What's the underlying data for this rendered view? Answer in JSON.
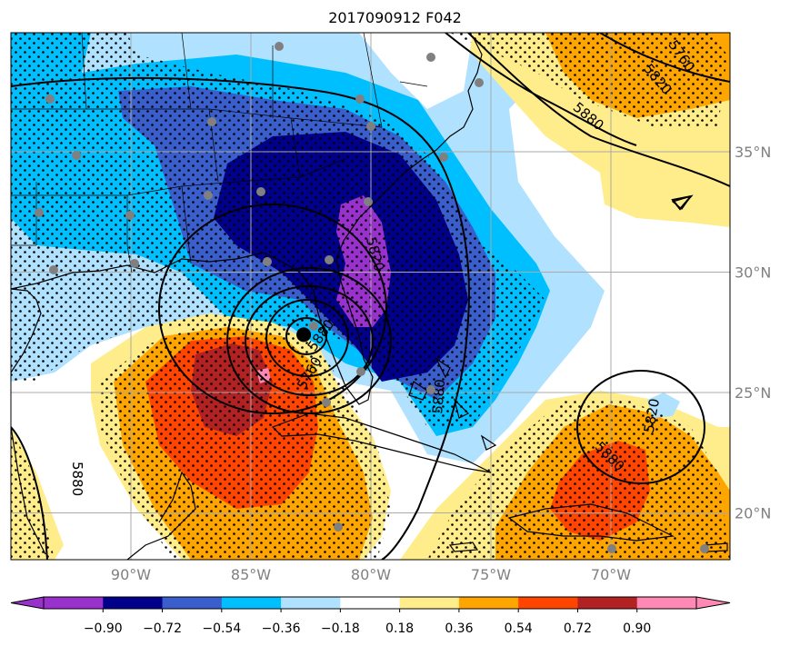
{
  "title": "2017090912 F042",
  "map": {
    "lon_ticks": [
      {
        "lon": -90,
        "label": "90°W"
      },
      {
        "lon": -85,
        "label": "85°W"
      },
      {
        "lon": -80,
        "label": "80°W"
      },
      {
        "lon": -75,
        "label": "75°W"
      },
      {
        "lon": -70,
        "label": "70°W"
      }
    ],
    "lat_ticks": [
      {
        "lat": 35,
        "label": "35°N"
      },
      {
        "lat": 30,
        "label": "30°N"
      },
      {
        "lat": 25,
        "label": "25°N"
      },
      {
        "lat": 20,
        "label": "20°N"
      }
    ],
    "contour_labels": [
      "5760",
      "5820",
      "5880",
      "5760",
      "5820",
      "5880",
      "5880",
      "5820",
      "5880",
      "5880"
    ],
    "storm_center": {
      "lon": -82.8,
      "lat": 27.4
    }
  },
  "colorbar": {
    "colors": [
      "#9932cc",
      "#00008b",
      "#3a5fcd",
      "#00bfff",
      "#b0e2ff",
      "#ffffff",
      "#ffec8b",
      "#ffa500",
      "#ff4500",
      "#b22222",
      "#ff89b4"
    ],
    "labels": [
      "−0.90",
      "−0.72",
      "−0.54",
      "−0.36",
      "−0.18",
      "0.18",
      "0.36",
      "0.54",
      "0.72",
      "0.90"
    ]
  },
  "legend_colors": {
    "grid": "#aaaaaa",
    "coast": "#000000",
    "stipple": "#000000",
    "obs_point": "#808080"
  }
}
